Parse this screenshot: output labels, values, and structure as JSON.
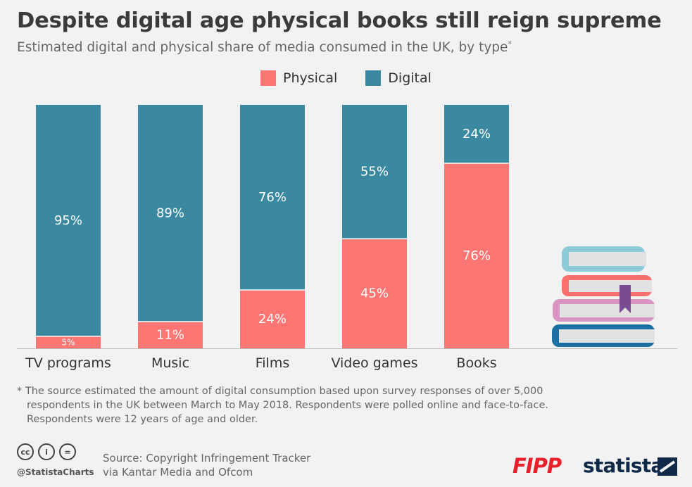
{
  "title": "Despite digital age physical books still reign supreme",
  "subtitle": "Estimated digital and physical share of media consumed in the UK, by type",
  "subtitle_mark": "*",
  "legend": [
    {
      "label": "Physical",
      "color": "#fe7673"
    },
    {
      "label": "Digital",
      "color": "#3b89a1"
    }
  ],
  "chart_data": {
    "type": "bar",
    "stacked": true,
    "orientation": "vertical",
    "categories": [
      "TV programs",
      "Music",
      "Films",
      "Video games",
      "Books"
    ],
    "series": [
      {
        "name": "Physical",
        "color": "#fe7673",
        "values": [
          5,
          11,
          24,
          45,
          76
        ],
        "labels": [
          "5%",
          "11%",
          "24%",
          "45%",
          "76%"
        ]
      },
      {
        "name": "Digital",
        "color": "#3b89a1",
        "values": [
          95,
          89,
          76,
          55,
          24
        ],
        "labels": [
          "95%",
          "89%",
          "76%",
          "55%",
          "24%"
        ]
      }
    ],
    "ylim": [
      0,
      100
    ],
    "grid": false,
    "legend_position": "top-center"
  },
  "footnote": {
    "line1": "* The source estimated the amount of digital consumption based upon survey responses of over 5,000",
    "line2": "respondents in the UK between March to May 2018. Respondents were polled online and face-to-face.",
    "line3": "Respondents were 12 years of age and older."
  },
  "license_icons": [
    "cc-icon",
    "by-icon",
    "nd-icon"
  ],
  "license_glyphs": {
    "cc": "cc",
    "by": "i",
    "nd": "="
  },
  "handle": "@StatistaCharts",
  "source": {
    "line1": "Source: Copyright Infringement Tracker",
    "line2": "via Kantar Media and Ofcom"
  },
  "brands": {
    "fipp": "FIPP",
    "statista": "statista"
  }
}
